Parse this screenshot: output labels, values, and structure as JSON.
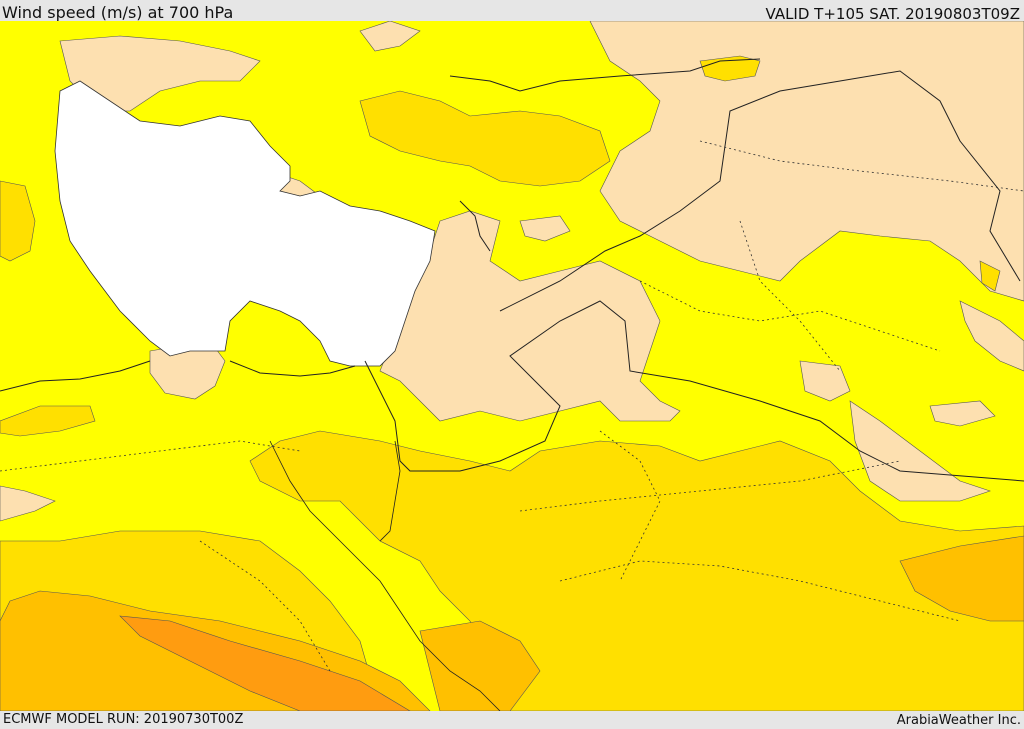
{
  "header": {
    "title": "Wind speed (m/s) at 700 hPa",
    "valid_time": "VALID T+105 SAT. 20190803T09Z"
  },
  "footer": {
    "model_run": "ECMWF MODEL RUN: 20190730T00Z",
    "credit": "ArabiaWeather Inc."
  },
  "map": {
    "colors": {
      "calm": "#fde0b0",
      "light": "#ffff00",
      "moderate": "#ffe000",
      "fresh": "#ffc000",
      "strong": "#ff9c10",
      "sea_mask": "#ffffff",
      "border": "#222222"
    }
  }
}
